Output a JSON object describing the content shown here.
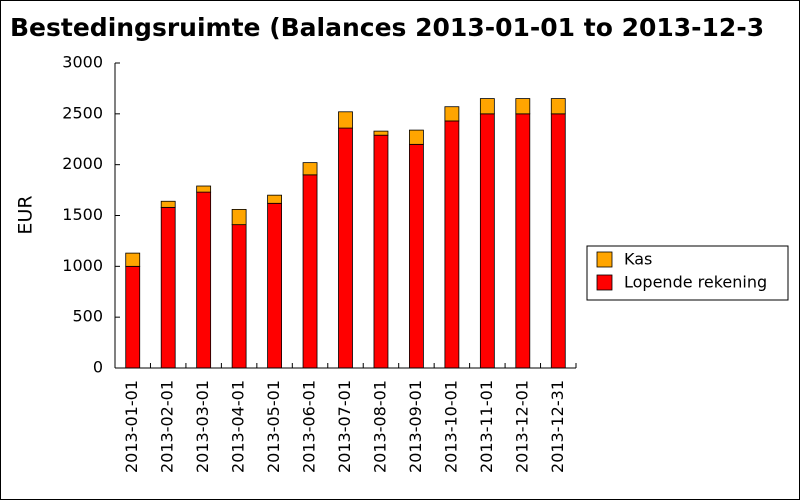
{
  "chart_data": {
    "type": "stacked-bar",
    "title": "Bestedingsruimte (Balances 2013-01-01 to 2013-12-3",
    "y_label": "EUR",
    "categories": [
      "2013-01-01",
      "2013-02-01",
      "2013-03-01",
      "2013-04-01",
      "2013-05-01",
      "2013-06-01",
      "2013-07-01",
      "2013-08-01",
      "2013-09-01",
      "2013-10-01",
      "2013-11-01",
      "2013-12-01",
      "2013-12-31"
    ],
    "series": [
      {
        "name": "Lopende rekening",
        "color": "#ff0000",
        "values": [
          1000,
          1580,
          1730,
          1410,
          1620,
          1900,
          2360,
          2290,
          2200,
          2430,
          2500,
          2500,
          2500
        ]
      },
      {
        "name": "Kas",
        "color": "#ffa500",
        "values": [
          130,
          60,
          60,
          150,
          80,
          120,
          160,
          40,
          140,
          140,
          150,
          150,
          150
        ]
      }
    ],
    "ylim": [
      0,
      3000
    ],
    "yticks": [
      0,
      500,
      1000,
      1500,
      2000,
      2500,
      3000
    ],
    "legend": "right"
  }
}
